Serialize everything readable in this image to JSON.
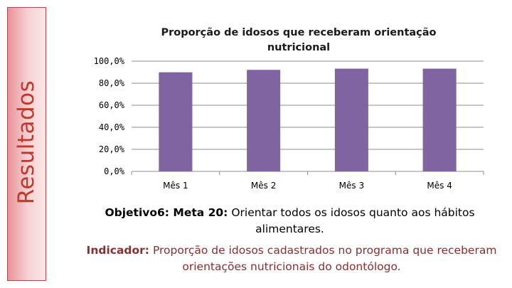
{
  "sidebar": {
    "label": "Resultados"
  },
  "chart_data": {
    "type": "bar",
    "title": "Proporção de idosos que receberam orientação nutricional",
    "categories": [
      "Mês 1",
      "Mês 2",
      "Mês 3",
      "Mês 4"
    ],
    "values": [
      89.9,
      92.1,
      93.2,
      93.2
    ],
    "ylim": [
      0,
      100
    ],
    "yticks": [
      0,
      20,
      40,
      60,
      80,
      100
    ],
    "ytick_labels": [
      "0,0%",
      "20,0%",
      "40,0%",
      "60,0%",
      "80,0%",
      "100,0%"
    ],
    "xlabel": "",
    "ylabel": "",
    "grid": true,
    "bar_color": "#8064a2"
  },
  "objective": {
    "label": "Objetivo6: Meta 20:",
    "text": "Orientar todos os idosos quanto aos hábitos alimentares."
  },
  "indicator": {
    "label": "Indicador:",
    "text": "Proporção de idosos cadastrados no programa que receberam orientações nutricionais do odontólogo."
  }
}
